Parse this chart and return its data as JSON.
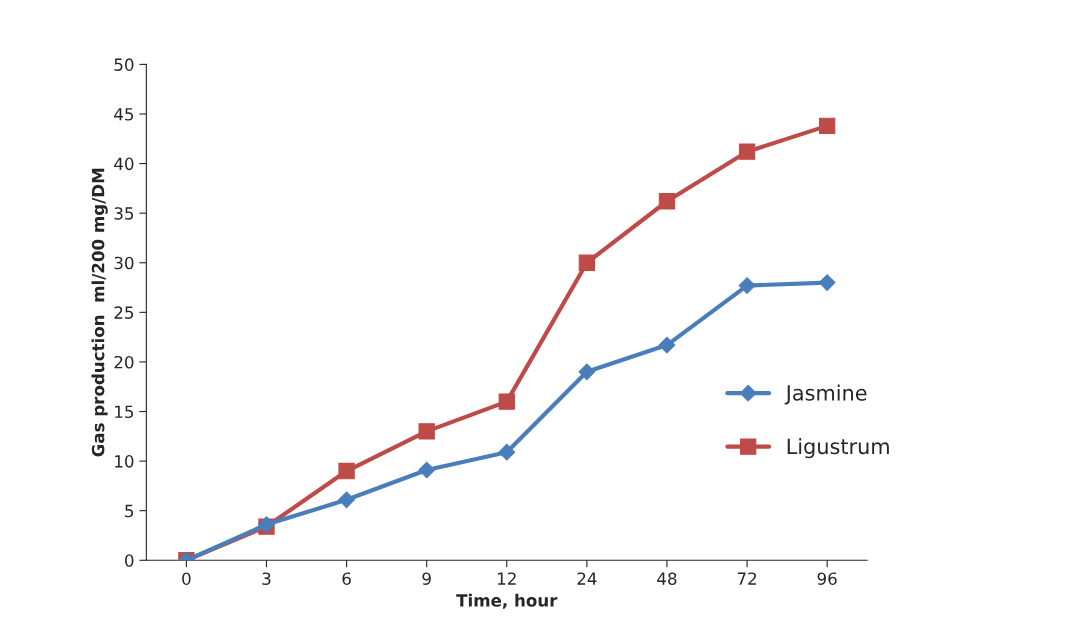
{
  "chart_data": {
    "type": "line",
    "xlabel": "Time, hour",
    "ylabel": "Gas production  ml/200 mg/DM",
    "categories": [
      "0",
      "3",
      "6",
      "9",
      "12",
      "24",
      "48",
      "72",
      "96"
    ],
    "series": [
      {
        "name": "Jasmine",
        "color": "#4a7ebb",
        "marker": "diamond",
        "values": [
          0,
          3.6,
          6.1,
          9.1,
          10.9,
          19.0,
          21.7,
          27.7,
          28.0
        ]
      },
      {
        "name": "Ligustrum",
        "color": "#be4b48",
        "marker": "square",
        "values": [
          0,
          3.4,
          9.0,
          13.0,
          16.0,
          30.0,
          36.2,
          41.2,
          43.8
        ]
      }
    ],
    "ylim": [
      0,
      50
    ],
    "yticks": [
      0,
      5,
      10,
      15,
      20,
      25,
      30,
      35,
      40,
      45,
      50
    ],
    "grid": false,
    "legend": "right",
    "line_style": "solid"
  }
}
